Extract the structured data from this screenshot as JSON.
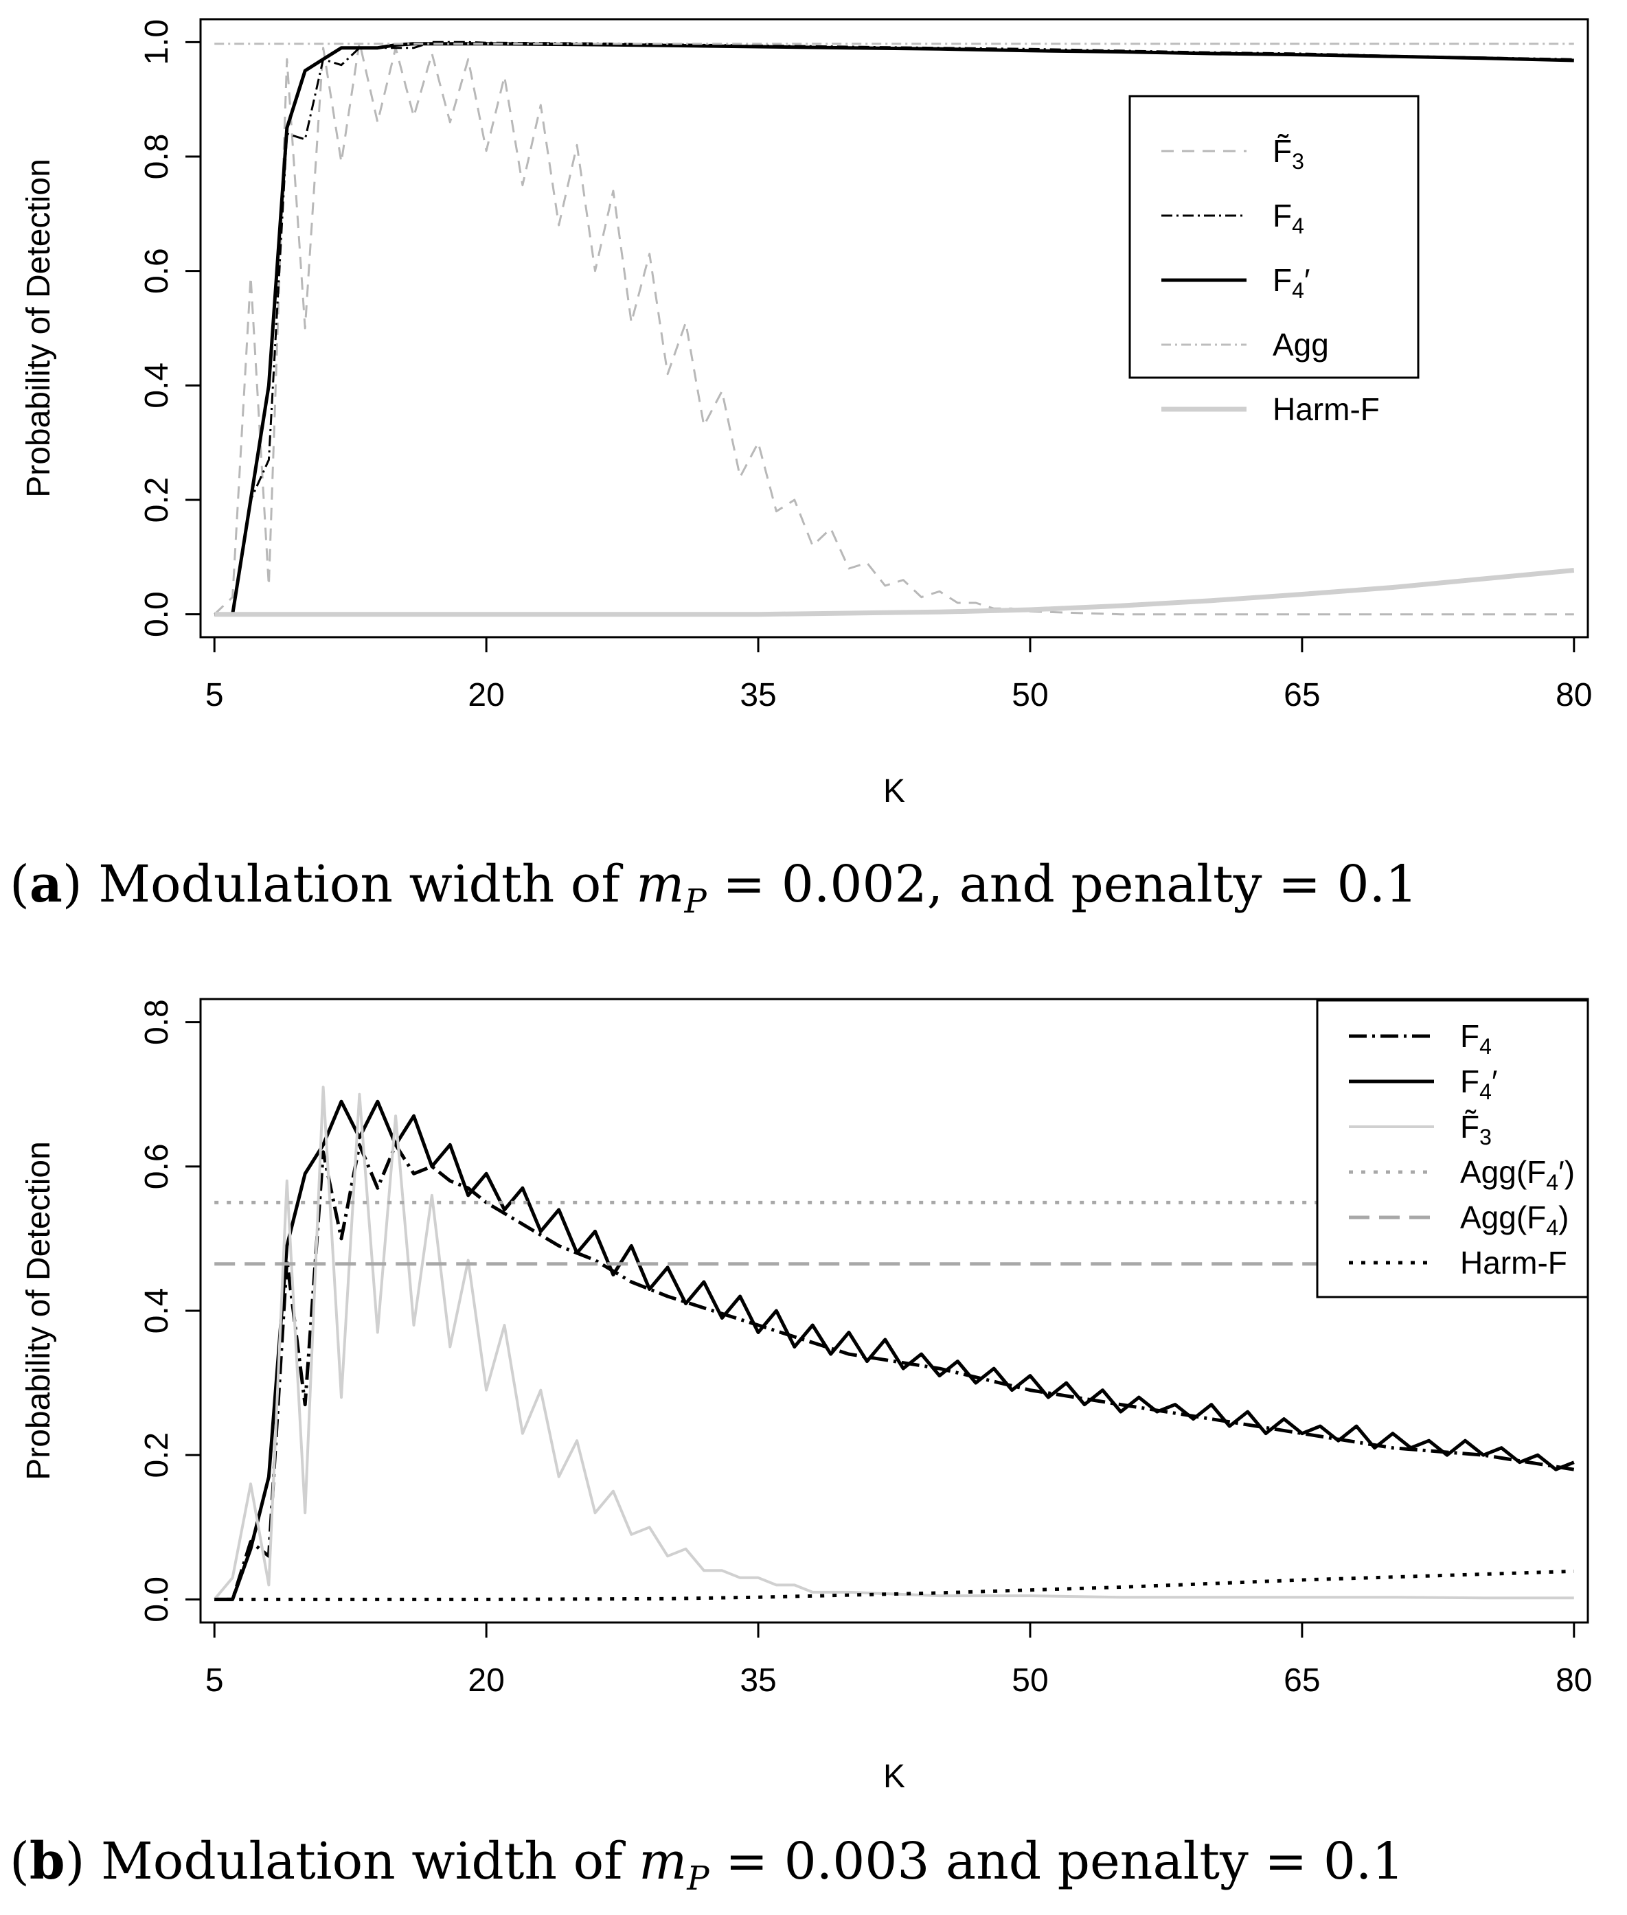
{
  "chart_data": [
    {
      "type": "line",
      "panel_label": "a",
      "caption_text": "Modulation width of ",
      "caption_math_var": "m",
      "caption_math_sub": "P",
      "caption_rest": " = 0.002, and penalty = 0.1",
      "xlabel": "K",
      "ylabel": "Probability of Detection",
      "xlim": [
        5,
        80
      ],
      "ylim": [
        0,
        1.0
      ],
      "xticks": [
        "5",
        "20",
        "35",
        "50",
        "65",
        "80"
      ],
      "yticks": [
        "0.0",
        "0.2",
        "0.4",
        "0.6",
        "0.8",
        "1.0"
      ],
      "legend_position": "upper-right-inside",
      "series": [
        {
          "name": "F̃3",
          "label_base": "F̃",
          "label_sub": "3",
          "label_prime": "",
          "color": "#b8b8b8",
          "dash": "18,12",
          "width": 3,
          "x": [
            5,
            6,
            7,
            8,
            9,
            10,
            11,
            12,
            13,
            14,
            15,
            16,
            17,
            18,
            19,
            20,
            21,
            22,
            23,
            24,
            25,
            26,
            27,
            28,
            29,
            30,
            31,
            32,
            33,
            34,
            35,
            36,
            37,
            38,
            39,
            40,
            41,
            42,
            43,
            44,
            45,
            46,
            47,
            48,
            49,
            50,
            55,
            60,
            65,
            70,
            75,
            80
          ],
          "y": [
            0,
            0.03,
            0.59,
            0.05,
            0.97,
            0.5,
            0.99,
            0.79,
            1.0,
            0.86,
            0.99,
            0.87,
            0.98,
            0.86,
            0.97,
            0.81,
            0.94,
            0.75,
            0.89,
            0.68,
            0.82,
            0.6,
            0.74,
            0.51,
            0.63,
            0.42,
            0.51,
            0.33,
            0.39,
            0.24,
            0.3,
            0.18,
            0.2,
            0.12,
            0.15,
            0.08,
            0.09,
            0.05,
            0.06,
            0.03,
            0.04,
            0.02,
            0.02,
            0.01,
            0.01,
            0.005,
            0.0,
            0.0,
            0.0,
            0.0,
            0.0,
            0.0
          ]
        },
        {
          "name": "F4",
          "label_base": "F",
          "label_sub": "4",
          "label_prime": "",
          "color": "#000000",
          "dash": "16,6,3,6",
          "width": 3,
          "x": [
            5,
            6,
            7,
            8,
            9,
            10,
            11,
            12,
            13,
            14,
            15,
            16,
            17,
            18,
            19,
            20,
            25,
            30,
            35,
            40,
            45,
            50,
            55,
            60,
            65,
            70,
            75,
            80
          ],
          "y": [
            0,
            0.0,
            0.2,
            0.27,
            0.84,
            0.83,
            0.97,
            0.96,
            0.99,
            0.99,
            0.99,
            0.99,
            1.0,
            1.0,
            1.0,
            0.999,
            0.998,
            0.996,
            0.994,
            0.992,
            0.99,
            0.988,
            0.985,
            0.982,
            0.98,
            0.976,
            0.973,
            0.97
          ]
        },
        {
          "name": "F4′",
          "label_base": "F",
          "label_sub": "4",
          "label_prime": "′",
          "color": "#000000",
          "dash": "",
          "width": 5,
          "x": [
            5,
            6,
            7,
            8,
            9,
            10,
            11,
            12,
            13,
            14,
            15,
            16,
            17,
            18,
            19,
            20,
            25,
            30,
            35,
            40,
            45,
            50,
            55,
            60,
            65,
            70,
            75,
            80
          ],
          "y": [
            0,
            0.0,
            0.2,
            0.4,
            0.85,
            0.95,
            0.97,
            0.99,
            0.99,
            0.99,
            0.995,
            0.997,
            0.997,
            0.997,
            0.997,
            0.997,
            0.996,
            0.994,
            0.992,
            0.99,
            0.988,
            0.985,
            0.983,
            0.98,
            0.978,
            0.975,
            0.972,
            0.968
          ]
        },
        {
          "name": "Agg",
          "label_base": "Agg",
          "label_sub": "",
          "label_prime": "",
          "color": "#bdbdbd",
          "dash": "14,6,3,6",
          "width": 3,
          "x": [
            5,
            80
          ],
          "y": [
            0.997,
            0.997
          ]
        },
        {
          "name": "Harm-F",
          "label_base": "Harm-F",
          "label_sub": "",
          "label_prime": "",
          "color": "#cfcfcf",
          "dash": "",
          "width": 7,
          "x": [
            5,
            20,
            35,
            40,
            45,
            50,
            55,
            60,
            65,
            70,
            75,
            80
          ],
          "y": [
            0,
            0,
            0,
            0.002,
            0.004,
            0.008,
            0.015,
            0.024,
            0.035,
            0.047,
            0.062,
            0.077
          ]
        }
      ]
    },
    {
      "type": "line",
      "panel_label": "b",
      "caption_text": "Modulation width of ",
      "caption_math_var": "m",
      "caption_math_sub": "P",
      "caption_rest": " = 0.003 and penalty = 0.1",
      "xlabel": "K",
      "ylabel": "Probability of Detection",
      "xlim": [
        5,
        80
      ],
      "ylim": [
        0,
        0.8
      ],
      "xticks": [
        "5",
        "20",
        "35",
        "50",
        "65",
        "80"
      ],
      "yticks": [
        "0.0",
        "0.2",
        "0.4",
        "0.6",
        "0.8"
      ],
      "legend_position": "upper-right-inside",
      "series": [
        {
          "name": "F4",
          "label_base": "F",
          "label_sub": "4",
          "label_prime": "",
          "color": "#000000",
          "dash": "26,8,4,8",
          "width": 5,
          "x": [
            5,
            6,
            7,
            8,
            9,
            10,
            11,
            12,
            13,
            14,
            15,
            16,
            17,
            18,
            19,
            20,
            22,
            24,
            26,
            28,
            30,
            35,
            40,
            45,
            50,
            55,
            60,
            65,
            70,
            75,
            80
          ],
          "y": [
            0,
            0.0,
            0.08,
            0.06,
            0.47,
            0.27,
            0.62,
            0.5,
            0.63,
            0.57,
            0.63,
            0.59,
            0.6,
            0.58,
            0.57,
            0.55,
            0.52,
            0.49,
            0.47,
            0.44,
            0.42,
            0.38,
            0.34,
            0.32,
            0.29,
            0.27,
            0.25,
            0.23,
            0.21,
            0.2,
            0.18
          ]
        },
        {
          "name": "F4′",
          "label_base": "F",
          "label_sub": "4",
          "label_prime": "′",
          "color": "#000000",
          "dash": "",
          "width": 5,
          "x": [
            5,
            6,
            7,
            8,
            9,
            10,
            11,
            12,
            13,
            14,
            15,
            16,
            17,
            18,
            19,
            20,
            21,
            22,
            23,
            24,
            25,
            26,
            27,
            28,
            29,
            30,
            31,
            32,
            33,
            34,
            35,
            36,
            37,
            38,
            39,
            40,
            41,
            42,
            43,
            44,
            45,
            46,
            47,
            48,
            49,
            50,
            51,
            52,
            53,
            54,
            55,
            56,
            57,
            58,
            59,
            60,
            61,
            62,
            63,
            64,
            65,
            66,
            67,
            68,
            69,
            70,
            71,
            72,
            73,
            74,
            75,
            76,
            77,
            78,
            79,
            80
          ],
          "y": [
            0,
            0.0,
            0.07,
            0.17,
            0.49,
            0.59,
            0.63,
            0.69,
            0.64,
            0.69,
            0.63,
            0.67,
            0.6,
            0.63,
            0.56,
            0.59,
            0.54,
            0.57,
            0.51,
            0.54,
            0.48,
            0.51,
            0.45,
            0.49,
            0.43,
            0.46,
            0.41,
            0.44,
            0.39,
            0.42,
            0.37,
            0.4,
            0.35,
            0.38,
            0.34,
            0.37,
            0.33,
            0.36,
            0.32,
            0.34,
            0.31,
            0.33,
            0.3,
            0.32,
            0.29,
            0.31,
            0.28,
            0.3,
            0.27,
            0.29,
            0.26,
            0.28,
            0.26,
            0.27,
            0.25,
            0.27,
            0.24,
            0.26,
            0.23,
            0.25,
            0.23,
            0.24,
            0.22,
            0.24,
            0.21,
            0.23,
            0.21,
            0.22,
            0.2,
            0.22,
            0.2,
            0.21,
            0.19,
            0.2,
            0.18,
            0.19
          ]
        },
        {
          "name": "F̃3",
          "label_base": "F̃",
          "label_sub": "3",
          "label_prime": "",
          "color": "#d0d0d0",
          "dash": "",
          "width": 4,
          "x": [
            5,
            6,
            7,
            8,
            9,
            10,
            11,
            12,
            13,
            14,
            15,
            16,
            17,
            18,
            19,
            20,
            21,
            22,
            23,
            24,
            25,
            26,
            27,
            28,
            29,
            30,
            31,
            32,
            33,
            34,
            35,
            36,
            37,
            38,
            39,
            40,
            45,
            50,
            55,
            60,
            65,
            70,
            75,
            80
          ],
          "y": [
            0,
            0.03,
            0.16,
            0.02,
            0.58,
            0.12,
            0.71,
            0.28,
            0.7,
            0.37,
            0.67,
            0.38,
            0.56,
            0.35,
            0.47,
            0.29,
            0.38,
            0.23,
            0.29,
            0.17,
            0.22,
            0.12,
            0.15,
            0.09,
            0.1,
            0.06,
            0.07,
            0.04,
            0.04,
            0.03,
            0.03,
            0.02,
            0.02,
            0.01,
            0.01,
            0.01,
            0.005,
            0.005,
            0.003,
            0.003,
            0.003,
            0.003,
            0.002,
            0.002
          ]
        },
        {
          "name": "Agg(F4′)",
          "label_base": "Agg(F",
          "label_sub": "4",
          "label_prime": "′)",
          "color": "#a8a8a8",
          "dash": "6,12",
          "width": 5,
          "x": [
            5,
            80
          ],
          "y": [
            0.55,
            0.55
          ]
        },
        {
          "name": "Agg(F4)",
          "label_base": "Agg(F",
          "label_sub": "4",
          "label_prime": ")",
          "color": "#a8a8a8",
          "dash": "30,14",
          "width": 5,
          "x": [
            5,
            80
          ],
          "y": [
            0.465,
            0.465
          ]
        },
        {
          "name": "Harm-F",
          "label_base": "Harm-F",
          "label_sub": "",
          "label_prime": "",
          "color": "#000000",
          "dash": "6,12",
          "width": 5,
          "x": [
            5,
            20,
            30,
            35,
            40,
            45,
            50,
            55,
            60,
            65,
            70,
            75,
            80
          ],
          "y": [
            0,
            0,
            0.001,
            0.003,
            0.006,
            0.009,
            0.013,
            0.017,
            0.022,
            0.027,
            0.031,
            0.035,
            0.039
          ]
        }
      ]
    }
  ]
}
